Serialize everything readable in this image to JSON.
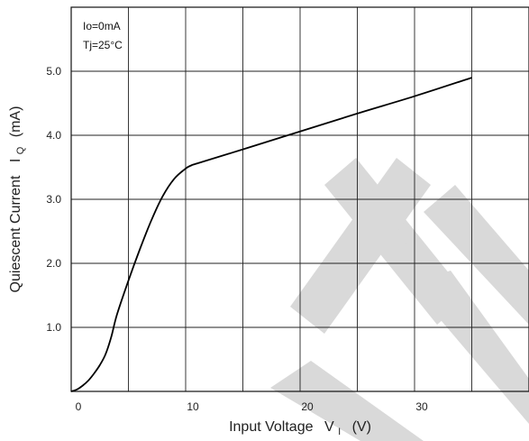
{
  "chart_data": {
    "type": "line",
    "title": "",
    "xlabel": "Input Voltage",
    "xlabel_symbol": "V",
    "xlabel_subscript": "I",
    "xlabel_unit": "(V)",
    "ylabel": "Quiescent Current",
    "ylabel_symbol": "I",
    "ylabel_subscript": "Q",
    "ylabel_unit": "(mA)",
    "xlim": [
      0,
      40
    ],
    "ylim": [
      0,
      6
    ],
    "x_ticks": [
      0,
      10,
      20,
      30
    ],
    "x_tick_labels": [
      "0",
      "10",
      "20",
      "30"
    ],
    "y_ticks": [
      1,
      2,
      3,
      4,
      5
    ],
    "y_tick_labels": [
      "1.0",
      "2.0",
      "3.0",
      "4.0",
      "5.0"
    ],
    "grid_x_step": 5,
    "grid_y_step": 1,
    "grid": true,
    "annotations": [
      "Io=0mA",
      "Tj=25°C"
    ],
    "series": [
      {
        "color": "#000000",
        "x": [
          0,
          0.5,
          1,
          1.5,
          2,
          2.5,
          3,
          3.5,
          4,
          5,
          6,
          7,
          8,
          9,
          10,
          10.5,
          11,
          15,
          20,
          25,
          30,
          35
        ],
        "y": [
          0,
          0.03,
          0.09,
          0.17,
          0.28,
          0.41,
          0.58,
          0.85,
          1.2,
          1.73,
          2.22,
          2.67,
          3.05,
          3.32,
          3.48,
          3.53,
          3.56,
          3.78,
          4.06,
          4.34,
          4.61,
          4.9
        ]
      }
    ]
  },
  "watermark": {
    "color": "#d9d9d9"
  }
}
